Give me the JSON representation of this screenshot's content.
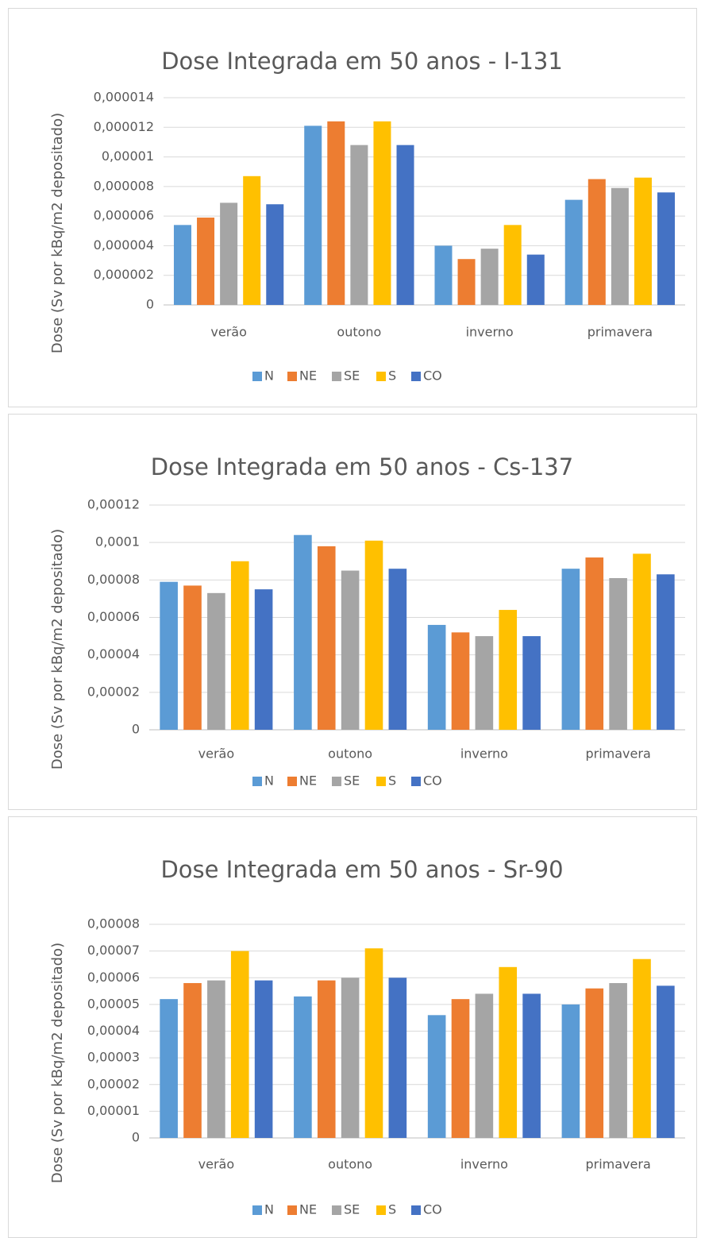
{
  "chart_data": [
    {
      "type": "bar",
      "title": "Dose Integrada em 50 anos - I-131",
      "y_label": "Dose (Sv por kBq/m2 depositado)",
      "categories": [
        "verão",
        "outono",
        "inverno",
        "primavera"
      ],
      "series": [
        {
          "name": "N",
          "color": "#5b9bd5",
          "values": [
            5.4e-06,
            1.21e-05,
            4e-06,
            7.1e-06
          ]
        },
        {
          "name": "NE",
          "color": "#ed7d31",
          "values": [
            5.9e-06,
            1.24e-05,
            3.1e-06,
            8.5e-06
          ]
        },
        {
          "name": "SE",
          "color": "#a5a5a5",
          "values": [
            6.9e-06,
            1.08e-05,
            3.8e-06,
            7.9e-06
          ]
        },
        {
          "name": "S",
          "color": "#ffc000",
          "values": [
            8.7e-06,
            1.24e-05,
            5.4e-06,
            8.6e-06
          ]
        },
        {
          "name": "CO",
          "color": "#4472c4",
          "values": [
            6.8e-06,
            1.08e-05,
            3.4e-06,
            7.6e-06
          ]
        }
      ],
      "ylim": [
        0,
        1.4e-05
      ],
      "yticks": [
        0,
        {
          "value": 2e-06,
          "label": "0,000002"
        },
        {
          "value": 4e-06,
          "label": "0,000004"
        },
        {
          "value": 6e-06,
          "label": "0,000006"
        },
        {
          "value": 8e-06,
          "label": "0,000008"
        },
        {
          "value": 1e-05,
          "label": "0,00001"
        },
        {
          "value": 1.2e-05,
          "label": "0,000012"
        },
        {
          "value": 1.4e-05,
          "label": "0,000014"
        }
      ],
      "grid": true,
      "legend": "bottom"
    },
    {
      "type": "bar",
      "title": "Dose Integrada em 50 anos - Cs-137",
      "y_label": "Dose (Sv por kBq/m2 depositado)",
      "categories": [
        "verão",
        "outono",
        "inverno",
        "primavera"
      ],
      "series": [
        {
          "name": "N",
          "color": "#5b9bd5",
          "values": [
            7.9e-05,
            0.000104,
            5.6e-05,
            8.6e-05
          ]
        },
        {
          "name": "NE",
          "color": "#ed7d31",
          "values": [
            7.7e-05,
            9.8e-05,
            5.2e-05,
            9.2e-05
          ]
        },
        {
          "name": "SE",
          "color": "#a5a5a5",
          "values": [
            7.3e-05,
            8.5e-05,
            5e-05,
            8.1e-05
          ]
        },
        {
          "name": "S",
          "color": "#ffc000",
          "values": [
            9e-05,
            0.000101,
            6.4e-05,
            9.4e-05
          ]
        },
        {
          "name": "CO",
          "color": "#4472c4",
          "values": [
            7.5e-05,
            8.6e-05,
            5e-05,
            8.3e-05
          ]
        }
      ],
      "ylim": [
        0,
        0.00012
      ],
      "yticks": [
        0,
        {
          "value": 2e-05,
          "label": "0,00002"
        },
        {
          "value": 4e-05,
          "label": "0,00004"
        },
        {
          "value": 6e-05,
          "label": "0,00006"
        },
        {
          "value": 8e-05,
          "label": "0,00008"
        },
        {
          "value": 0.0001,
          "label": "0,0001"
        },
        {
          "value": 0.00012,
          "label": "0,00012"
        }
      ],
      "grid": true,
      "legend": "bottom"
    },
    {
      "type": "bar",
      "title": "Dose Integrada em 50 anos - Sr-90",
      "y_label": "Dose (Sv por kBq/m2 depositado)",
      "categories": [
        "verão",
        "outono",
        "inverno",
        "primavera"
      ],
      "series": [
        {
          "name": "N",
          "color": "#5b9bd5",
          "values": [
            5.2e-05,
            5.3e-05,
            4.6e-05,
            5e-05
          ]
        },
        {
          "name": "NE",
          "color": "#ed7d31",
          "values": [
            5.8e-05,
            5.9e-05,
            5.2e-05,
            5.6e-05
          ]
        },
        {
          "name": "SE",
          "color": "#a5a5a5",
          "values": [
            5.9e-05,
            6e-05,
            5.4e-05,
            5.8e-05
          ]
        },
        {
          "name": "S",
          "color": "#ffc000",
          "values": [
            7e-05,
            7.1e-05,
            6.4e-05,
            6.7e-05
          ]
        },
        {
          "name": "CO",
          "color": "#4472c4",
          "values": [
            5.9e-05,
            6e-05,
            5.4e-05,
            5.7e-05
          ]
        }
      ],
      "ylim": [
        0,
        8e-05
      ],
      "yticks": [
        0,
        {
          "value": 1e-05,
          "label": "0,00001"
        },
        {
          "value": 2e-05,
          "label": "0,00002"
        },
        {
          "value": 3e-05,
          "label": "0,00003"
        },
        {
          "value": 4e-05,
          "label": "0,00004"
        },
        {
          "value": 5e-05,
          "label": "0,00005"
        },
        {
          "value": 6e-05,
          "label": "0,00006"
        },
        {
          "value": 7e-05,
          "label": "0,00007"
        },
        {
          "value": 8e-05,
          "label": "0,00008"
        }
      ],
      "grid": true,
      "legend": "bottom"
    }
  ]
}
